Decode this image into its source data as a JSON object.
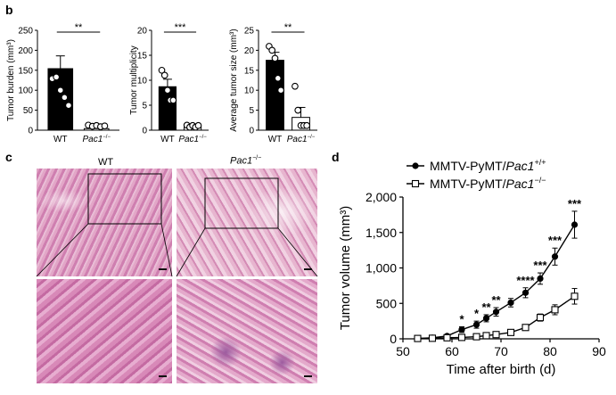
{
  "figure": {
    "panel_labels": {
      "b": "b",
      "c": "c",
      "d": "d"
    }
  },
  "panel_c": {
    "col_labels": {
      "wt": "WT",
      "ko": "Pac1",
      "ko_sup": "−/−"
    }
  },
  "chart_data": [
    {
      "id": "tumor_burden",
      "type": "bar",
      "categories": [
        "WT",
        "Pac1"
      ],
      "category_superscripts": [
        "",
        "−/−"
      ],
      "values": [
        154,
        4
      ],
      "errors": [
        32,
        2
      ],
      "points": [
        [
          129,
          133,
          100,
          82,
          62
        ],
        [
          6,
          3,
          5,
          2,
          4
        ]
      ],
      "ylabel": "Tumor burden (mm³)",
      "ylim": [
        0,
        250
      ],
      "yticks": [
        0,
        50,
        100,
        150,
        200,
        250
      ],
      "significance": "**",
      "bar_fill": [
        "#000000",
        "#ffffff"
      ]
    },
    {
      "id": "tumor_multiplicity",
      "type": "bar",
      "categories": [
        "WT",
        "Pac1"
      ],
      "category_superscripts": [
        "",
        "−/−"
      ],
      "values": [
        8.7,
        0.6
      ],
      "errors": [
        1.5,
        0.3
      ],
      "points": [
        [
          12,
          11,
          8,
          6,
          6
        ],
        [
          1,
          0.6,
          0.4,
          0.6,
          0.4
        ]
      ],
      "ylabel": "Tumor multiplicity",
      "ylim": [
        0,
        20
      ],
      "yticks": [
        0,
        5,
        10,
        15,
        20
      ],
      "significance": "***",
      "bar_fill": [
        "#000000",
        "#ffffff"
      ]
    },
    {
      "id": "average_tumor_size",
      "type": "bar",
      "categories": [
        "WT",
        "Pac1"
      ],
      "category_superscripts": [
        "",
        "−/−"
      ],
      "values": [
        17.5,
        3.2
      ],
      "errors": [
        2.0,
        2.5
      ],
      "points": [
        [
          21,
          20,
          18,
          13,
          10
        ],
        [
          11,
          5,
          0.5,
          0.5,
          0.5
        ]
      ],
      "ylabel": "Average tumor size (mm³)",
      "ylim": [
        0,
        25
      ],
      "yticks": [
        0,
        5,
        10,
        15,
        20,
        25
      ],
      "significance": "**",
      "bar_fill": [
        "#000000",
        "#ffffff"
      ]
    },
    {
      "id": "tumor_volume",
      "type": "line",
      "xlabel": "Time after birth (d)",
      "ylabel": "Tumor volume (mm³)",
      "xlim": [
        50,
        90
      ],
      "ylim": [
        0,
        2000
      ],
      "xticks": [
        50,
        60,
        70,
        80,
        90
      ],
      "yticks": [
        0,
        500,
        1000,
        1500,
        2000
      ],
      "ytick_labels": [
        "0",
        "500",
        "1,000",
        "1,500",
        "2,000"
      ],
      "legend_position": "top-left",
      "series": [
        {
          "name": "MMTV-PyMT/Pac1",
          "name_superscript": "+/+",
          "marker": "circle-filled",
          "x": [
            53,
            56,
            59,
            62,
            65,
            67,
            69,
            72,
            75,
            78,
            81,
            85
          ],
          "y": [
            5,
            15,
            40,
            130,
            200,
            290,
            380,
            510,
            650,
            850,
            1160,
            1610
          ],
          "err": [
            5,
            8,
            15,
            40,
            50,
            50,
            60,
            60,
            70,
            80,
            120,
            190
          ],
          "annotations": [
            "",
            "",
            "",
            "*",
            "*",
            "**",
            "**",
            "",
            "****",
            "***",
            "***",
            "***"
          ]
        },
        {
          "name": "MMTV-PyMT/Pac1",
          "name_superscript": "−/−",
          "marker": "square-open",
          "x": [
            53,
            56,
            59,
            62,
            65,
            67,
            69,
            72,
            75,
            78,
            81,
            85
          ],
          "y": [
            5,
            8,
            15,
            20,
            30,
            45,
            60,
            90,
            160,
            300,
            410,
            600
          ],
          "err": [
            3,
            4,
            5,
            8,
            10,
            12,
            15,
            20,
            30,
            50,
            70,
            110
          ]
        }
      ]
    }
  ]
}
